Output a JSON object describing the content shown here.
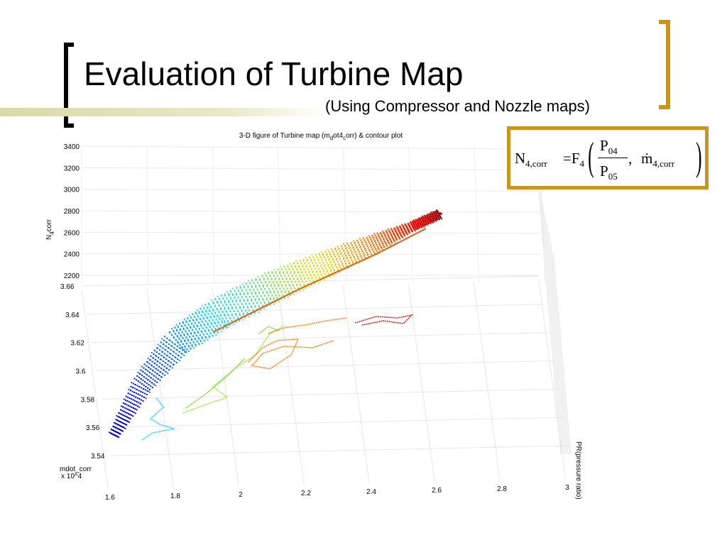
{
  "slide": {
    "title": "Evaluation of Turbine Map",
    "subtitle": "(Using Compressor and Nozzle maps)"
  },
  "formula": {
    "lhs_symbol": "N",
    "lhs_sub": "4,corr",
    "equals": "=F",
    "func_sub": "4",
    "num_symbol": "P",
    "num_sub": "04",
    "den_symbol": "P",
    "den_sub": "05",
    "comma": ",",
    "mdot_symbol": "ṁ",
    "mdot_sub": "4,corr"
  },
  "colors": {
    "accent_gold": "#c8961e",
    "deco_bar": "#d9d9a8"
  },
  "chart_data": {
    "type": "scatter",
    "title_parts": [
      "3-D figure of Turbine map (m",
      "d",
      "ot4",
      "c",
      "orr) &  contour plot"
    ],
    "zlabel_main": "N",
    "zlabel_sub": "4",
    "zlabel_tail": "corr",
    "ylabel": "mdot_corr",
    "yexp": "x 10^4",
    "xlabel": "PR(pressure ratio)",
    "x_ticks": [
      "1.6",
      "1.8",
      "2",
      "2.2",
      "2.4",
      "2.6",
      "2.8",
      "3"
    ],
    "y_ticks": [
      "3.54",
      "3.56",
      "3.58",
      "3.6",
      "3.62",
      "3.64",
      "3.66"
    ],
    "z_ticks": [
      "2200",
      "2400",
      "2600",
      "2800",
      "3000",
      "3200",
      "3400"
    ],
    "xlim": [
      1.6,
      3.0
    ],
    "ylim": [
      35400,
      36600
    ],
    "zlim": [
      2200,
      3400
    ],
    "grid": true,
    "surface_colormap": "jet",
    "contour_levels": [
      {
        "level": "low",
        "color": "#1ec8ff"
      },
      {
        "level": "mid-low",
        "color": "#9fe23a"
      },
      {
        "level": "mid",
        "color": "#7ac83a"
      },
      {
        "level": "mid-high",
        "color": "#f08018"
      },
      {
        "level": "high",
        "color": "#c81818"
      }
    ]
  }
}
